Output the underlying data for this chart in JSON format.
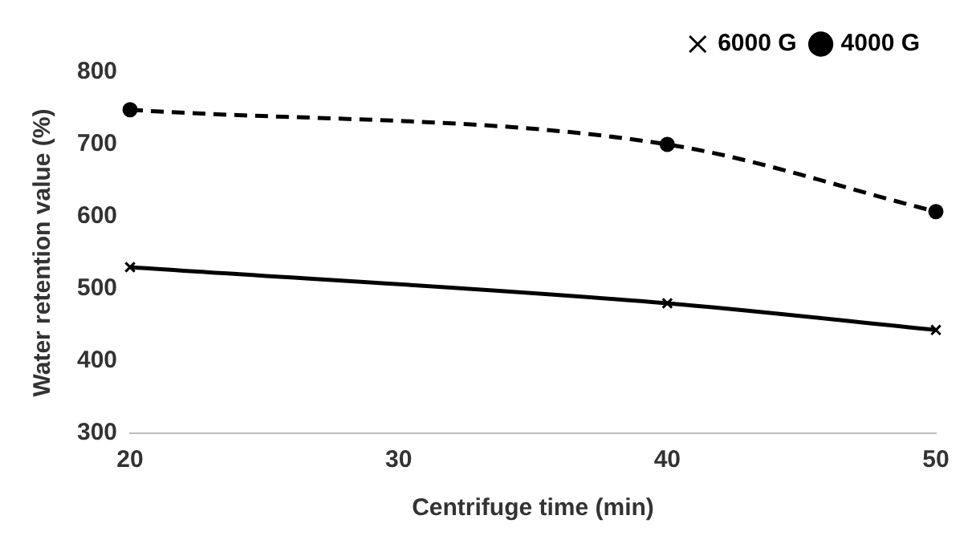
{
  "chart_data": {
    "type": "line",
    "xlabel": "Centrifuge time (min)",
    "ylabel": "Water retention value (%)",
    "xlim": [
      20,
      50
    ],
    "xticks": [
      20,
      30,
      40,
      50
    ],
    "ylim": [
      300,
      800
    ],
    "yticks": [
      300,
      400,
      500,
      600,
      700,
      800
    ],
    "grid": false,
    "legend": "top right",
    "series": [
      {
        "name": "6000 G",
        "color": "#000000",
        "x": [
          20,
          40,
          50
        ],
        "values": [
          530,
          480,
          443
        ],
        "marker": "cross",
        "line_style": "solid"
      },
      {
        "name": "4000 G",
        "color": "#000000",
        "x": [
          20,
          40,
          50
        ],
        "values": [
          748,
          700,
          607
        ],
        "marker": "circle",
        "line_style": "dashed"
      }
    ]
  }
}
